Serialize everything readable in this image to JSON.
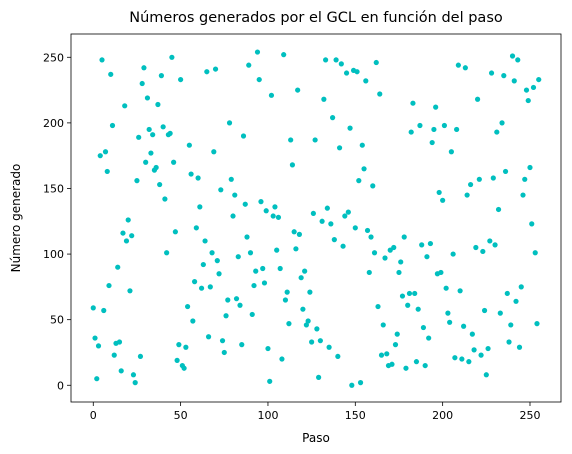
{
  "chart_data": {
    "type": "scatter",
    "title": "Números generados por el GCL en función del paso",
    "xlabel": "Paso",
    "ylabel": "Número generado",
    "xlim": [
      -12.75,
      267.75
    ],
    "ylim": [
      -12.75,
      267.75
    ],
    "xticks": [
      0,
      50,
      100,
      150,
      200,
      250
    ],
    "yticks": [
      0,
      50,
      100,
      150,
      200,
      250
    ],
    "grid": false,
    "marker_color": "#00BFBF",
    "series": [
      {
        "x": [
          0,
          1,
          2,
          3,
          4,
          5,
          6,
          7,
          8,
          9,
          10,
          11,
          12,
          13,
          14,
          15,
          16,
          17,
          18,
          19,
          20,
          21,
          22,
          23,
          24,
          25,
          26,
          27,
          28,
          29,
          30,
          31,
          32,
          33,
          34,
          35,
          36,
          37,
          38,
          39,
          40,
          41,
          42,
          43,
          44,
          45,
          46,
          47,
          48,
          49,
          50,
          51,
          52,
          53,
          54,
          55,
          56,
          57,
          58,
          59,
          60,
          61,
          62,
          63,
          64,
          65,
          66,
          67,
          68,
          69,
          70,
          71,
          72,
          73,
          74,
          75,
          76,
          77,
          78,
          79,
          80,
          81,
          82,
          83,
          84,
          85,
          86,
          87,
          88,
          89,
          90,
          91,
          92,
          93,
          94,
          95,
          96,
          97,
          98,
          99,
          100,
          101,
          102,
          103,
          104,
          105,
          106,
          107,
          108,
          109,
          110,
          111,
          112,
          113,
          114,
          115,
          116,
          117,
          118,
          119,
          120,
          121,
          122,
          123,
          124,
          125,
          126,
          127,
          128,
          129,
          130,
          131,
          132,
          133,
          134,
          135,
          136,
          137,
          138,
          139,
          140,
          141,
          142,
          143,
          144,
          145,
          146,
          147,
          148,
          149,
          150,
          151,
          152,
          153,
          154,
          155,
          156,
          157,
          158,
          159,
          160,
          161,
          162,
          163,
          164,
          165,
          166,
          167,
          168,
          169,
          170,
          171,
          172,
          173,
          174,
          175,
          176,
          177,
          178,
          179,
          180,
          181,
          182,
          183,
          184,
          185,
          186,
          187,
          188,
          189,
          190,
          191,
          192,
          193,
          194,
          195,
          196,
          197,
          198,
          199,
          200,
          201,
          202,
          203,
          204,
          205,
          206,
          207,
          208,
          209,
          210,
          211,
          212,
          213,
          214,
          215,
          216,
          217,
          218,
          219,
          220,
          221,
          222,
          223,
          224,
          225,
          226,
          227,
          228,
          229,
          230,
          231,
          232,
          233,
          234,
          235,
          236,
          237,
          238,
          239,
          240,
          241,
          242,
          243,
          244,
          245,
          246,
          247,
          248,
          249,
          250,
          251,
          252,
          253,
          254,
          255
        ],
        "y": [
          59,
          36,
          5,
          30,
          175,
          248,
          57,
          178,
          163,
          76,
          237,
          198,
          23,
          32,
          90,
          33,
          11,
          116,
          213,
          110,
          126,
          72,
          114,
          8,
          2,
          156,
          189,
          22,
          230,
          242,
          170,
          219,
          195,
          177,
          191,
          164,
          166,
          214,
          153,
          236,
          197,
          142,
          101,
          191,
          192,
          250,
          170,
          117,
          19,
          31,
          233,
          15,
          13,
          29,
          60,
          183,
          161,
          49,
          79,
          120,
          158,
          136,
          74,
          92,
          110,
          239,
          37,
          75,
          101,
          178,
          241,
          95,
          85,
          149,
          34,
          25,
          53,
          65,
          200,
          157,
          129,
          145,
          66,
          98,
          61,
          31,
          190,
          138,
          113,
          244,
          101,
          54,
          76,
          87,
          254,
          233,
          140,
          89,
          78,
          133,
          28,
          3,
          221,
          129,
          136,
          103,
          128,
          89,
          20,
          252,
          65,
          71,
          47,
          187,
          168,
          117,
          104,
          225,
          115,
          82,
          58,
          87,
          46,
          49,
          71,
          33,
          131,
          187,
          43,
          6,
          34,
          125,
          218,
          248,
          135,
          29,
          123,
          204,
          111,
          248,
          22,
          181,
          245,
          106,
          129,
          238,
          132,
          196,
          0,
          240,
          120,
          239,
          156,
          2,
          183,
          165,
          232,
          118,
          86,
          113,
          152,
          101,
          246,
          60,
          222,
          23,
          46,
          97,
          24,
          15,
          103,
          16,
          105,
          31,
          39,
          86,
          94,
          68,
          113,
          13,
          61,
          70,
          193,
          215,
          70,
          18,
          58,
          198,
          107,
          44,
          15,
          98,
          36,
          108,
          185,
          195,
          212,
          85,
          147,
          86,
          141,
          198,
          74,
          55,
          48,
          178,
          100,
          21,
          195,
          244,
          72,
          20,
          45,
          242,
          145,
          18,
          153,
          39,
          27,
          105,
          218,
          157,
          23,
          102,
          57,
          8,
          28,
          110,
          238,
          158,
          107,
          193,
          134,
          55,
          200,
          236,
          163,
          70,
          33,
          46,
          251,
          232,
          64,
          248,
          29,
          75,
          145,
          157,
          225,
          217,
          166,
          123,
          227,
          101,
          47,
          233
        ]
      }
    ]
  }
}
